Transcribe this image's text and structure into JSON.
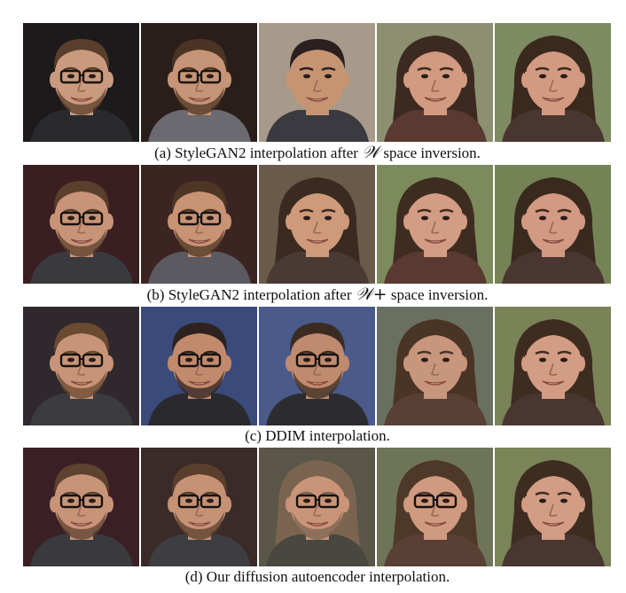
{
  "figure": {
    "rows": [
      {
        "caption_before": "(a) StyleGAN2 interpolation after ",
        "caption_math": "𝒲",
        "caption_after": " space inversion.",
        "faces": [
          {
            "bg": "#1c1a1a",
            "skin": "#c99a7e",
            "hair": "#5a3e2c",
            "glasses": true,
            "beard": true,
            "long_hair": false,
            "shirt": "#2a2a2e"
          },
          {
            "bg": "#2a1e1a",
            "skin": "#c69476",
            "hair": "#4c3424",
            "glasses": true,
            "beard": true,
            "long_hair": false,
            "shirt": "#6a6a70"
          },
          {
            "bg": "#a89a8a",
            "skin": "#c79472",
            "hair": "#2a2020",
            "glasses": false,
            "beard": false,
            "long_hair": false,
            "shirt": "#3a3a40"
          },
          {
            "bg": "#8c9070",
            "skin": "#d29a80",
            "hair": "#3c2a20",
            "glasses": false,
            "beard": false,
            "long_hair": true,
            "shirt": "#5a3a30"
          },
          {
            "bg": "#7e8a62",
            "skin": "#d39a82",
            "hair": "#3a2a1e",
            "glasses": false,
            "beard": false,
            "long_hair": true,
            "shirt": "#4a3630"
          }
        ]
      },
      {
        "caption_before": "(b) StyleGAN2 interpolation after ",
        "caption_math": "𝒲+",
        "caption_after": " space inversion.",
        "faces": [
          {
            "bg": "#3a1e22",
            "skin": "#c89478",
            "hair": "#5a402c",
            "glasses": true,
            "beard": true,
            "long_hair": false,
            "shirt": "#3a3a3e"
          },
          {
            "bg": "#3c2422",
            "skin": "#c89274",
            "hair": "#4e3624",
            "glasses": true,
            "beard": true,
            "long_hair": false,
            "shirt": "#5a5a60"
          },
          {
            "bg": "#6a5a4a",
            "skin": "#cf9a7a",
            "hair": "#3a2a20",
            "glasses": false,
            "beard": false,
            "long_hair": true,
            "shirt": "#4a3a34"
          },
          {
            "bg": "#7c8a5c",
            "skin": "#d39c84",
            "hair": "#3e2c20",
            "glasses": false,
            "beard": false,
            "long_hair": true,
            "shirt": "#5a3a30"
          },
          {
            "bg": "#748256",
            "skin": "#d29a82",
            "hair": "#3a2a1e",
            "glasses": false,
            "beard": false,
            "long_hair": true,
            "shirt": "#4a3630"
          }
        ]
      },
      {
        "caption_before": "(c) DDIM interpolation.",
        "caption_math": "",
        "caption_after": "",
        "faces": [
          {
            "bg": "#30282c",
            "skin": "#c89478",
            "hair": "#6a4a30",
            "glasses": true,
            "beard": true,
            "long_hair": false,
            "shirt": "#3c3c40"
          },
          {
            "bg": "#3a4a7a",
            "skin": "#c28a6c",
            "hair": "#2e2220",
            "glasses": true,
            "beard": true,
            "long_hair": false,
            "shirt": "#2a2a2e"
          },
          {
            "bg": "#4a5a8a",
            "skin": "#c08a6e",
            "hair": "#3a2c22",
            "glasses": true,
            "beard": true,
            "long_hair": false,
            "shirt": "#2c2c30"
          },
          {
            "bg": "#6a7060",
            "skin": "#c8967c",
            "hair": "#4a3426",
            "glasses": false,
            "beard": false,
            "long_hair": true,
            "shirt": "#5a4034"
          },
          {
            "bg": "#7a8258",
            "skin": "#d39c84",
            "hair": "#3e2c20",
            "glasses": false,
            "beard": false,
            "long_hair": true,
            "shirt": "#4a3630"
          }
        ]
      },
      {
        "caption_before": "(d) Our diffusion autoencoder interpolation.",
        "caption_math": "",
        "caption_after": "",
        "faces": [
          {
            "bg": "#3a2024",
            "skin": "#c89478",
            "hair": "#5e4230",
            "glasses": true,
            "beard": true,
            "long_hair": false,
            "shirt": "#3a3a3e"
          },
          {
            "bg": "#3a2a28",
            "skin": "#c69276",
            "hair": "#5a3e2c",
            "glasses": true,
            "beard": true,
            "long_hair": false,
            "shirt": "#3e3e42"
          },
          {
            "bg": "#5a5648",
            "skin": "#ca9478",
            "hair": "#7a6450",
            "glasses": true,
            "beard": true,
            "long_hair": true,
            "shirt": "#4a4640"
          },
          {
            "bg": "#6e7458",
            "skin": "#d09a80",
            "hair": "#4e3828",
            "glasses": true,
            "beard": false,
            "long_hair": true,
            "shirt": "#5a4034"
          },
          {
            "bg": "#7a8458",
            "skin": "#d39c84",
            "hair": "#3e2c20",
            "glasses": false,
            "beard": false,
            "long_hair": true,
            "shirt": "#4a3630"
          }
        ]
      }
    ]
  }
}
